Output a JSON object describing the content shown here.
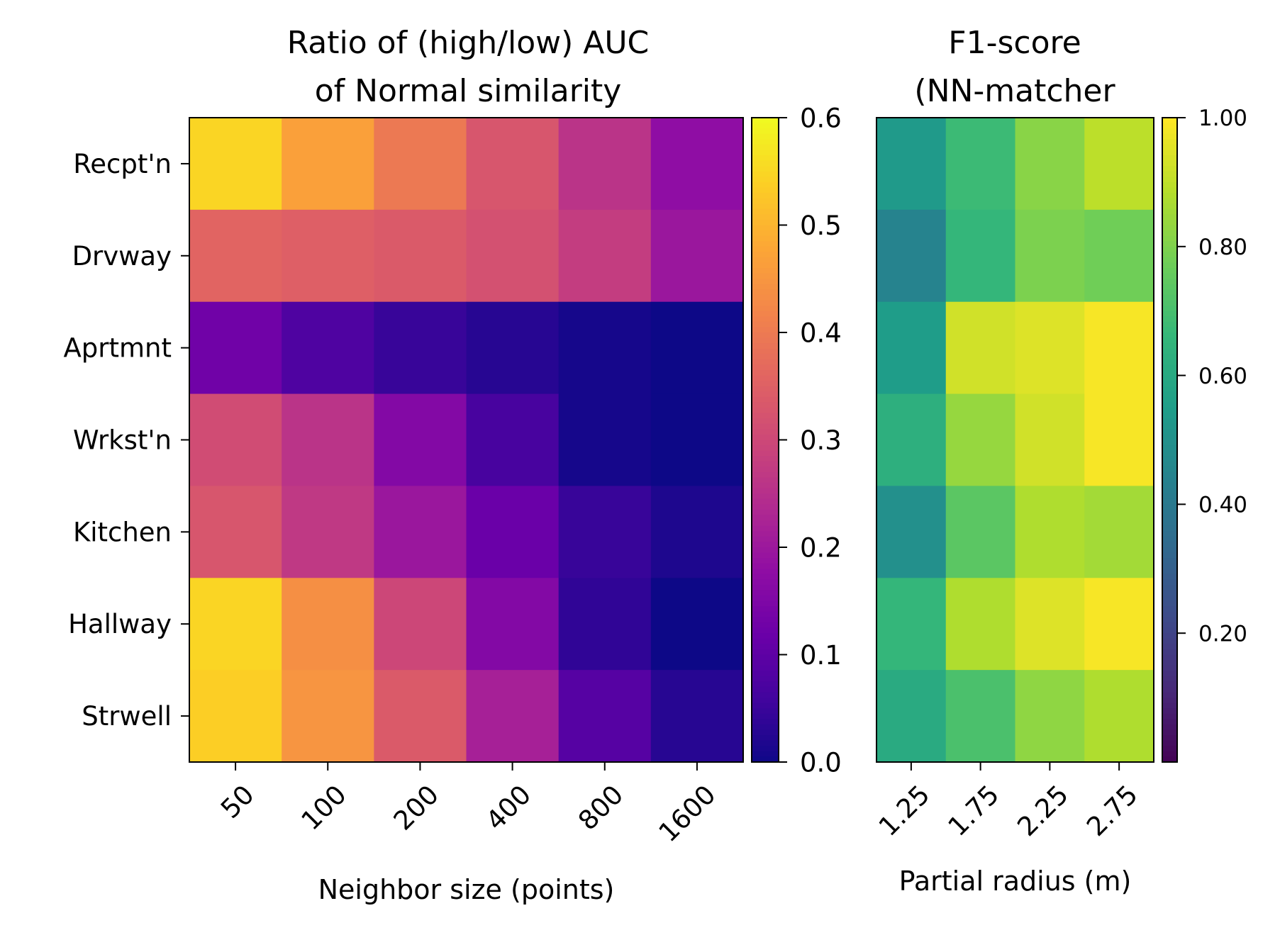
{
  "chart_data": [
    {
      "type": "heatmap",
      "title": "Ratio of (high/low) AUC\nof Normal similarity",
      "xlabel": "Neighbor size (points)",
      "ylabel": "",
      "x_categories": [
        "50",
        "100",
        "200",
        "400",
        "800",
        "1600"
      ],
      "y_categories": [
        "Recpt'n",
        "Drvway",
        "Aprtmnt",
        "Wrkst'n",
        "Kitchen",
        "Hallway",
        "Strwell"
      ],
      "colormap": "plasma",
      "clim": [
        0,
        0.6
      ],
      "colorbar_ticks": [
        "0.0",
        "0.1",
        "0.2",
        "0.3",
        "0.4",
        "0.5",
        "0.6"
      ],
      "values": [
        [
          0.55,
          0.47,
          0.4,
          0.33,
          0.26,
          0.18
        ],
        [
          0.36,
          0.35,
          0.34,
          0.32,
          0.28,
          0.2
        ],
        [
          0.13,
          0.08,
          0.05,
          0.03,
          0.01,
          0.0
        ],
        [
          0.31,
          0.26,
          0.16,
          0.07,
          0.01,
          0.0
        ],
        [
          0.33,
          0.27,
          0.2,
          0.12,
          0.05,
          0.02
        ],
        [
          0.55,
          0.44,
          0.3,
          0.16,
          0.04,
          0.0
        ],
        [
          0.54,
          0.45,
          0.34,
          0.22,
          0.09,
          0.03
        ]
      ]
    },
    {
      "type": "heatmap",
      "title": "F1-score\n(NN-matcher",
      "xlabel": "Partial radius (m)",
      "ylabel": "",
      "x_categories": [
        "1.25",
        "1.75",
        "2.25",
        "2.75"
      ],
      "y_categories": [
        "Recpt'n",
        "Drvway",
        "Aprtmnt",
        "Wrkst'n",
        "Kitchen",
        "Hallway",
        "Strwell"
      ],
      "colormap": "viridis",
      "clim": [
        0,
        1
      ],
      "colorbar_ticks": [
        "0.20",
        "0.40",
        "0.60",
        "0.80",
        "1.00"
      ],
      "values": [
        [
          0.54,
          0.68,
          0.82,
          0.9
        ],
        [
          0.45,
          0.66,
          0.8,
          0.78
        ],
        [
          0.55,
          0.93,
          0.95,
          0.99
        ],
        [
          0.63,
          0.84,
          0.93,
          0.99
        ],
        [
          0.5,
          0.74,
          0.88,
          0.86
        ],
        [
          0.66,
          0.88,
          0.95,
          0.99
        ],
        [
          0.61,
          0.71,
          0.83,
          0.88
        ]
      ]
    }
  ]
}
